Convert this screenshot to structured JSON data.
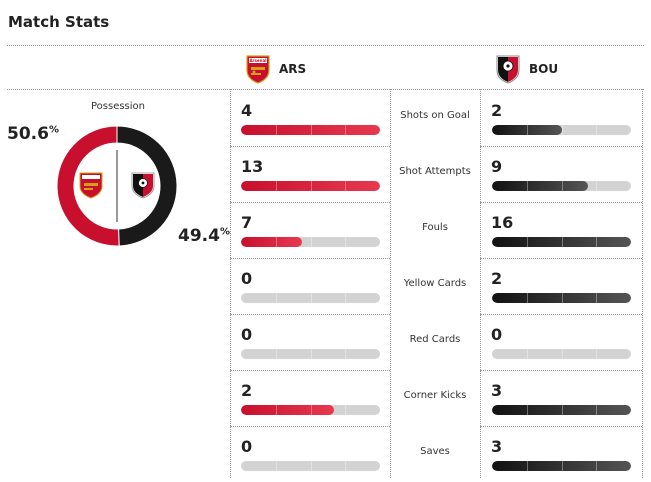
{
  "header": {
    "title": "Match Stats"
  },
  "teams": {
    "home": {
      "abbr": "ARS",
      "crest_text": "Arsenal",
      "color": "#c8102e"
    },
    "away": {
      "abbr": "BOU",
      "color": "#111111"
    }
  },
  "possession": {
    "label": "Possession",
    "home_value": "50.6",
    "away_value": "49.4",
    "percent_sign": "%",
    "home_fraction": 0.506,
    "away_fraction": 0.494
  },
  "stats": [
    {
      "label": "Shots on Goal",
      "home": "4",
      "away": "2",
      "home_fill": 1.0,
      "away_fill": 0.5
    },
    {
      "label": "Shot Attempts",
      "home": "13",
      "away": "9",
      "home_fill": 1.0,
      "away_fill": 0.69
    },
    {
      "label": "Fouls",
      "home": "7",
      "away": "16",
      "home_fill": 0.44,
      "away_fill": 1.0
    },
    {
      "label": "Yellow Cards",
      "home": "0",
      "away": "2",
      "home_fill": 0.0,
      "away_fill": 1.0
    },
    {
      "label": "Red Cards",
      "home": "0",
      "away": "0",
      "home_fill": 0.0,
      "away_fill": 0.0
    },
    {
      "label": "Corner Kicks",
      "home": "2",
      "away": "3",
      "home_fill": 0.67,
      "away_fill": 1.0
    },
    {
      "label": "Saves",
      "home": "0",
      "away": "3",
      "home_fill": 0.0,
      "away_fill": 1.0
    }
  ]
}
